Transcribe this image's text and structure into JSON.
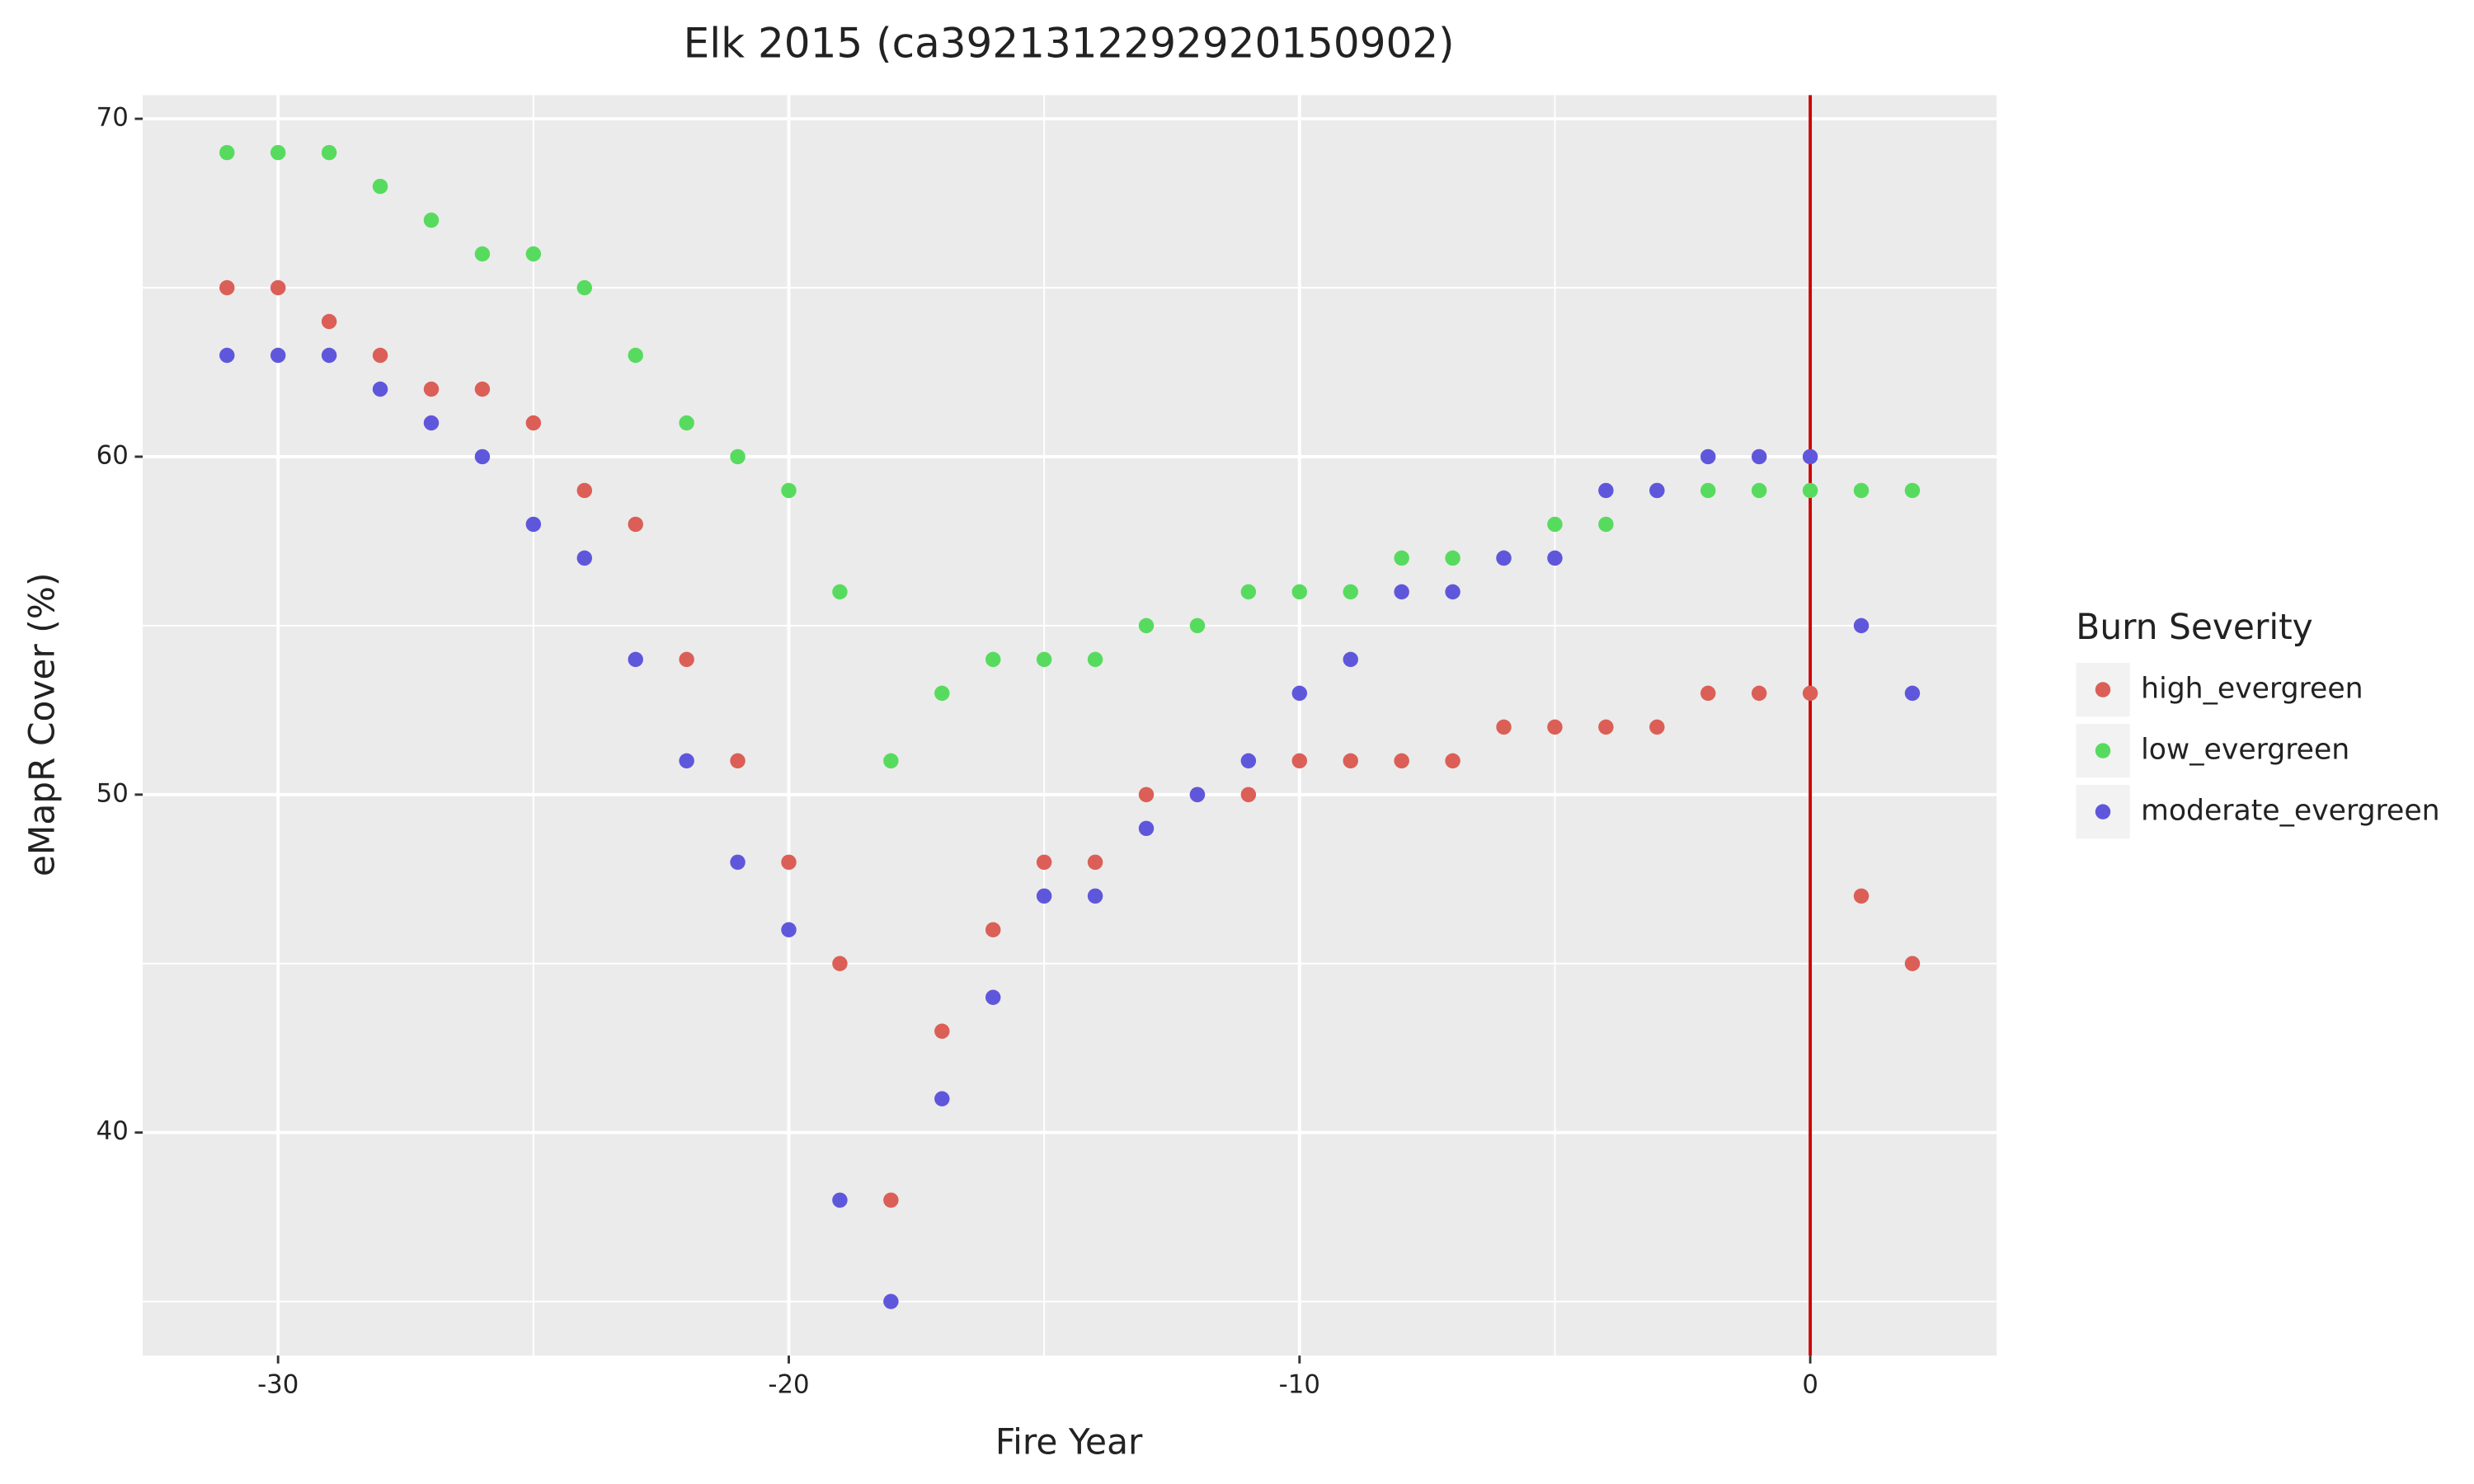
{
  "chart_data": {
    "type": "scatter",
    "title": "Elk 2015 (ca3921312292920150902)",
    "x_label": "Fire Year",
    "y_label": "eMapR Cover (%)",
    "legend_title": "Burn Severity",
    "x": [
      -31,
      -30,
      -29,
      -28,
      -27,
      -26,
      -25,
      -24,
      -23,
      -22,
      -21,
      -20,
      -19,
      -18,
      -17,
      -16,
      -15,
      -14,
      -13,
      -12,
      -11,
      -10,
      -9,
      -8,
      -7,
      -6,
      -5,
      -4,
      -3,
      -2,
      -1,
      0,
      1,
      2
    ],
    "series": [
      {
        "name": "high_evergreen",
        "color": "#db5f57",
        "values": [
          65,
          65,
          64,
          63,
          62,
          62,
          61,
          59,
          58,
          54,
          51,
          48,
          45,
          38,
          43,
          46,
          48,
          48,
          50,
          50,
          50,
          51,
          51,
          51,
          51,
          52,
          52,
          52,
          52,
          53,
          53,
          53,
          47,
          45
        ]
      },
      {
        "name": "low_evergreen",
        "color": "#57db5f",
        "values": [
          69,
          69,
          69,
          68,
          67,
          66,
          66,
          65,
          63,
          61,
          60,
          59,
          56,
          51,
          53,
          54,
          54,
          54,
          55,
          55,
          56,
          56,
          56,
          57,
          57,
          57,
          58,
          58,
          59,
          59,
          59,
          59,
          59,
          59
        ]
      },
      {
        "name": "moderate_evergreen",
        "color": "#5f57db",
        "values": [
          63,
          63,
          63,
          62,
          61,
          60,
          58,
          57,
          54,
          51,
          48,
          46,
          38,
          35,
          41,
          44,
          47,
          47,
          49,
          50,
          51,
          53,
          54,
          56,
          56,
          57,
          57,
          59,
          59,
          60,
          60,
          60,
          55,
          53
        ]
      }
    ],
    "vline": 0,
    "vline_color": "#cc0000",
    "xlim": [
      -32.65,
      3.65
    ],
    "xticks": [
      -30,
      -20,
      -10,
      0
    ],
    "xminor": [
      -25,
      -15,
      -5
    ],
    "ylim": [
      33.4,
      70.7
    ],
    "yticks": [
      40,
      50,
      60,
      70
    ],
    "yminor": [
      35,
      45,
      55,
      65
    ],
    "grid": true,
    "legend": "right"
  }
}
